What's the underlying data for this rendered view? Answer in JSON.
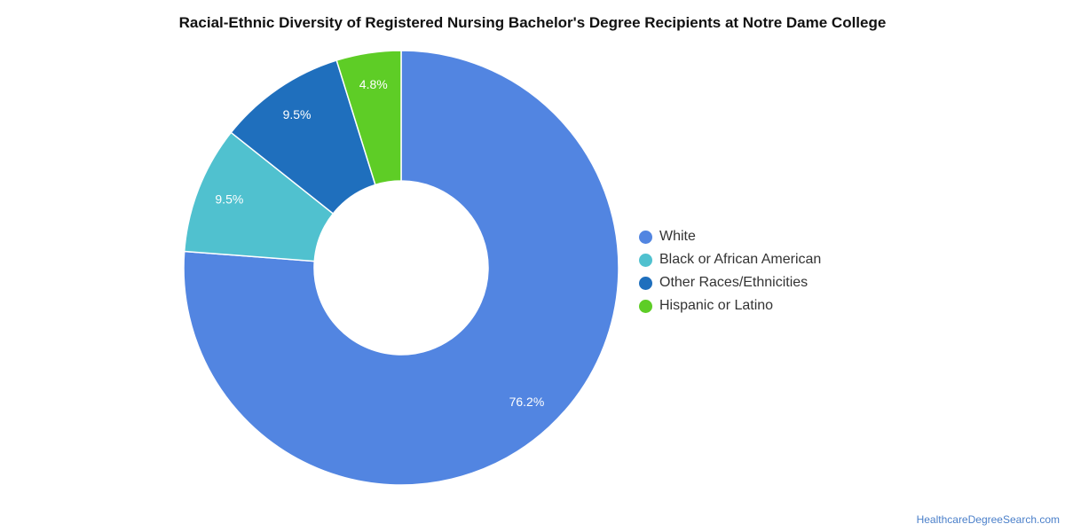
{
  "chart_data": {
    "type": "pie",
    "title": "Racial-Ethnic Diversity of Registered Nursing Bachelor's Degree Recipients at Notre Dame College",
    "categories": [
      "White",
      "Black or African American",
      "Other Races/Ethnicities",
      "Hispanic or Latino"
    ],
    "values": [
      76.2,
      9.5,
      9.5,
      4.8
    ],
    "labels": [
      "76.2%",
      "9.5%",
      "9.5%",
      "4.8%"
    ],
    "colors": [
      "#5285e1",
      "#50c1cf",
      "#1f6fbd",
      "#5ecd26"
    ],
    "donut": true,
    "legend": "right"
  },
  "source": "HealthcareDegreeSearch.com"
}
